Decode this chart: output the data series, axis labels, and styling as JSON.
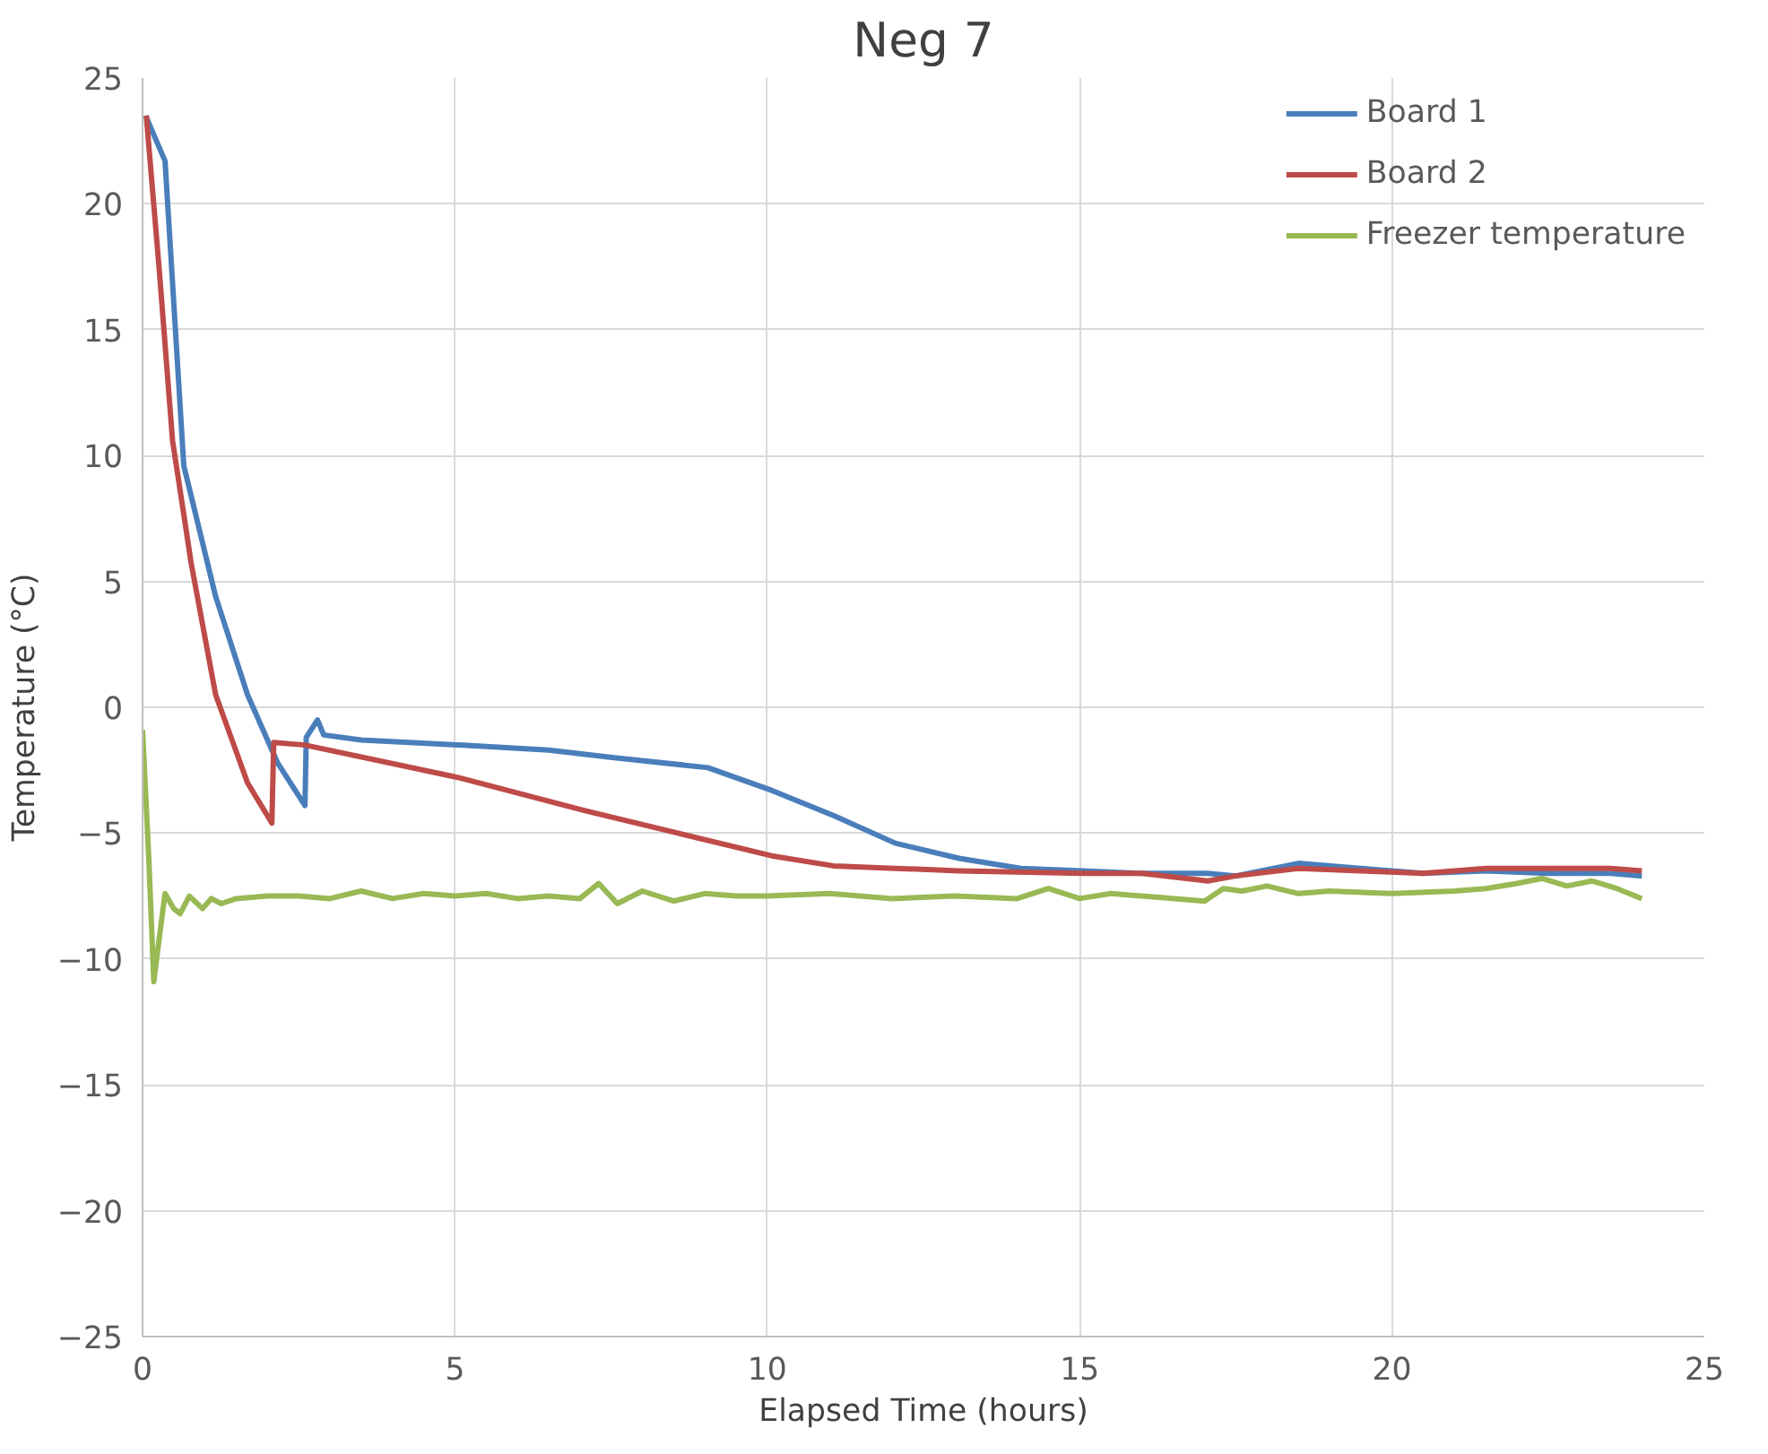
{
  "chart_data": {
    "type": "line",
    "title": "Neg 7",
    "xlabel": "Elapsed Time (hours)",
    "ylabel": "Temperature (°C)",
    "xlim": [
      0,
      25
    ],
    "ylim": [
      -25,
      25
    ],
    "xticks": [
      0,
      5,
      10,
      15,
      20,
      25
    ],
    "yticks": [
      -25,
      -20,
      -15,
      -10,
      -5,
      0,
      5,
      10,
      15,
      20,
      25
    ],
    "grid": true,
    "legend": "top right",
    "marker": "none",
    "line_style": "solid",
    "series": [
      {
        "name": "Board 1",
        "color": "#4a7ebb",
        "x": [
          0.05,
          0.36,
          0.66,
          1.17,
          1.68,
          2.16,
          2.6,
          2.62,
          2.8,
          2.9,
          3.5,
          5.07,
          6.5,
          7.55,
          9.05,
          10.07,
          11.06,
          12.05,
          13.07,
          14.06,
          15.05,
          16.0,
          17.05,
          17.5,
          18.5,
          19.5,
          20.5,
          21.5,
          22.5,
          23.5,
          24.0
        ],
        "values": [
          23.5,
          21.7,
          9.6,
          4.4,
          0.5,
          -2.2,
          -3.9,
          -1.2,
          -0.5,
          -1.1,
          -1.3,
          -1.5,
          -1.7,
          -2.0,
          -2.4,
          -3.3,
          -4.3,
          -5.4,
          -6.0,
          -6.4,
          -6.5,
          -6.6,
          -6.6,
          -6.7,
          -6.2,
          -6.4,
          -6.6,
          -6.5,
          -6.6,
          -6.6,
          -6.7
        ]
      },
      {
        "name": "Board 2",
        "color": "#be4b48",
        "x": [
          0.06,
          0.27,
          0.48,
          0.78,
          1.17,
          1.68,
          2.07,
          2.1,
          2.6,
          5.07,
          7.07,
          8.57,
          10.07,
          11.06,
          13.07,
          15.05,
          16.0,
          17.05,
          17.5,
          18.5,
          19.5,
          20.5,
          21.5,
          22.5,
          23.5,
          24.0
        ],
        "values": [
          23.5,
          17.3,
          10.6,
          5.7,
          0.5,
          -3.0,
          -4.6,
          -1.4,
          -1.5,
          -2.8,
          -4.1,
          -5.0,
          -5.9,
          -6.3,
          -6.5,
          -6.6,
          -6.6,
          -6.9,
          -6.7,
          -6.4,
          -6.5,
          -6.6,
          -6.4,
          -6.4,
          -6.4,
          -6.5
        ]
      },
      {
        "name": "Freezer temperature",
        "color": "#98b954",
        "x": [
          0.0,
          0.1,
          0.18,
          0.25,
          0.36,
          0.5,
          0.6,
          0.75,
          0.96,
          1.1,
          1.26,
          1.5,
          2.0,
          2.5,
          3.0,
          3.5,
          4.0,
          4.5,
          5.0,
          5.5,
          6.0,
          6.5,
          7.0,
          7.3,
          7.6,
          8.0,
          8.5,
          9.0,
          9.5,
          10.0,
          11.0,
          12.0,
          13.0,
          14.0,
          14.5,
          15.0,
          15.5,
          16.0,
          17.0,
          17.3,
          17.6,
          18.0,
          18.5,
          19.0,
          20.0,
          21.0,
          21.5,
          22.0,
          22.4,
          22.8,
          23.2,
          23.6,
          24.0
        ],
        "values": [
          -0.9,
          -6.0,
          -10.9,
          -9.5,
          -7.4,
          -8.0,
          -8.2,
          -7.5,
          -8.0,
          -7.6,
          -7.8,
          -7.6,
          -7.5,
          -7.5,
          -7.6,
          -7.3,
          -7.6,
          -7.4,
          -7.5,
          -7.4,
          -7.6,
          -7.5,
          -7.6,
          -7.0,
          -7.8,
          -7.3,
          -7.7,
          -7.4,
          -7.5,
          -7.5,
          -7.4,
          -7.6,
          -7.5,
          -7.6,
          -7.2,
          -7.6,
          -7.4,
          -7.5,
          -7.7,
          -7.2,
          -7.3,
          -7.1,
          -7.4,
          -7.3,
          -7.4,
          -7.3,
          -7.2,
          -7.0,
          -6.8,
          -7.1,
          -6.9,
          -7.2,
          -7.6
        ]
      }
    ]
  }
}
